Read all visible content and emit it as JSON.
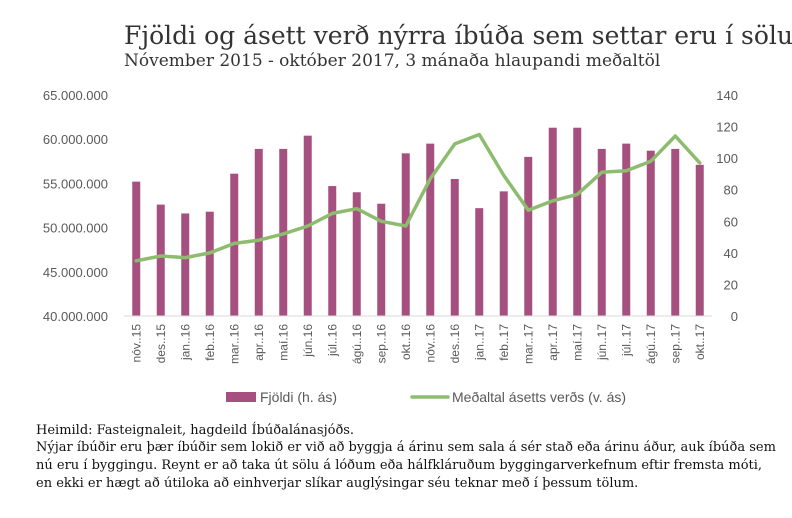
{
  "chart_data": {
    "type": "bar+line",
    "title": "Fjöldi og ásett verð nýrra íbúða sem settar eru í sölu",
    "subtitle": "Nóvember 2015 - október 2017, 3 mánaða hlaupandi meðaltöl",
    "categories": [
      "nóv..15",
      "des..15",
      "jan..16",
      "feb..16",
      "mar..16",
      "apr..16",
      "maí.16",
      "jún.16",
      "júl..16",
      "ágú..16",
      "sep..16",
      "okt..16",
      "nóv..16",
      "des..16",
      "jan..17",
      "feb..17",
      "mar..17",
      "apr..17",
      "maí.17",
      "jún..17",
      "júl..17",
      "ágú..17",
      "sep..17",
      "okt..17"
    ],
    "series": [
      {
        "name": "Fjöldi (h. ás)",
        "type": "bar",
        "axis": "left",
        "color": "#a6507f",
        "values": [
          55200000,
          52600000,
          51600000,
          51800000,
          56100000,
          58900000,
          58900000,
          60400000,
          54700000,
          54000000,
          52700000,
          58400000,
          59500000,
          55500000,
          52200000,
          54100000,
          58000000,
          61300000,
          61300000,
          58900000,
          59500000,
          58700000,
          58900000,
          57100000
        ]
      },
      {
        "name": "Meðaltal ásetts verðs (v. ás)",
        "type": "line",
        "axis": "right",
        "color": "#8ebc6e",
        "values": [
          35,
          38,
          37,
          40,
          46,
          48,
          52,
          57,
          65,
          68,
          60,
          57,
          87,
          109,
          115,
          89,
          67,
          73,
          77,
          91,
          92,
          98,
          114,
          97
        ]
      }
    ],
    "y_left": {
      "ylim": [
        40000000,
        65000000
      ],
      "ticks": [
        "40.000.000",
        "45.000.000",
        "50.000.000",
        "55.000.000",
        "60.000.000",
        "65.000.000"
      ]
    },
    "y_right": {
      "ylim": [
        0,
        140
      ],
      "ticks": [
        "0",
        "20",
        "40",
        "60",
        "80",
        "100",
        "120",
        "140"
      ]
    },
    "grid": false,
    "legend_position": "bottom"
  },
  "notes": {
    "source": "Heimild: Fasteignaleit, hagdeild Íbúðalánasjóðs.",
    "line1": "Nýjar íbúðir eru þær íbúðir sem lokið er við að byggja á árinu sem sala á sér stað eða árinu áður, auk íbúða sem",
    "line2": "nú eru í byggingu. Reynt er að taka út sölu á lóðum eða hálfkláruðum byggingarverkefnum eftir fremsta móti,",
    "line3": "en ekki er hægt að útiloka að einhverjar slíkar auglýsingar séu teknar með í þessum tölum."
  }
}
